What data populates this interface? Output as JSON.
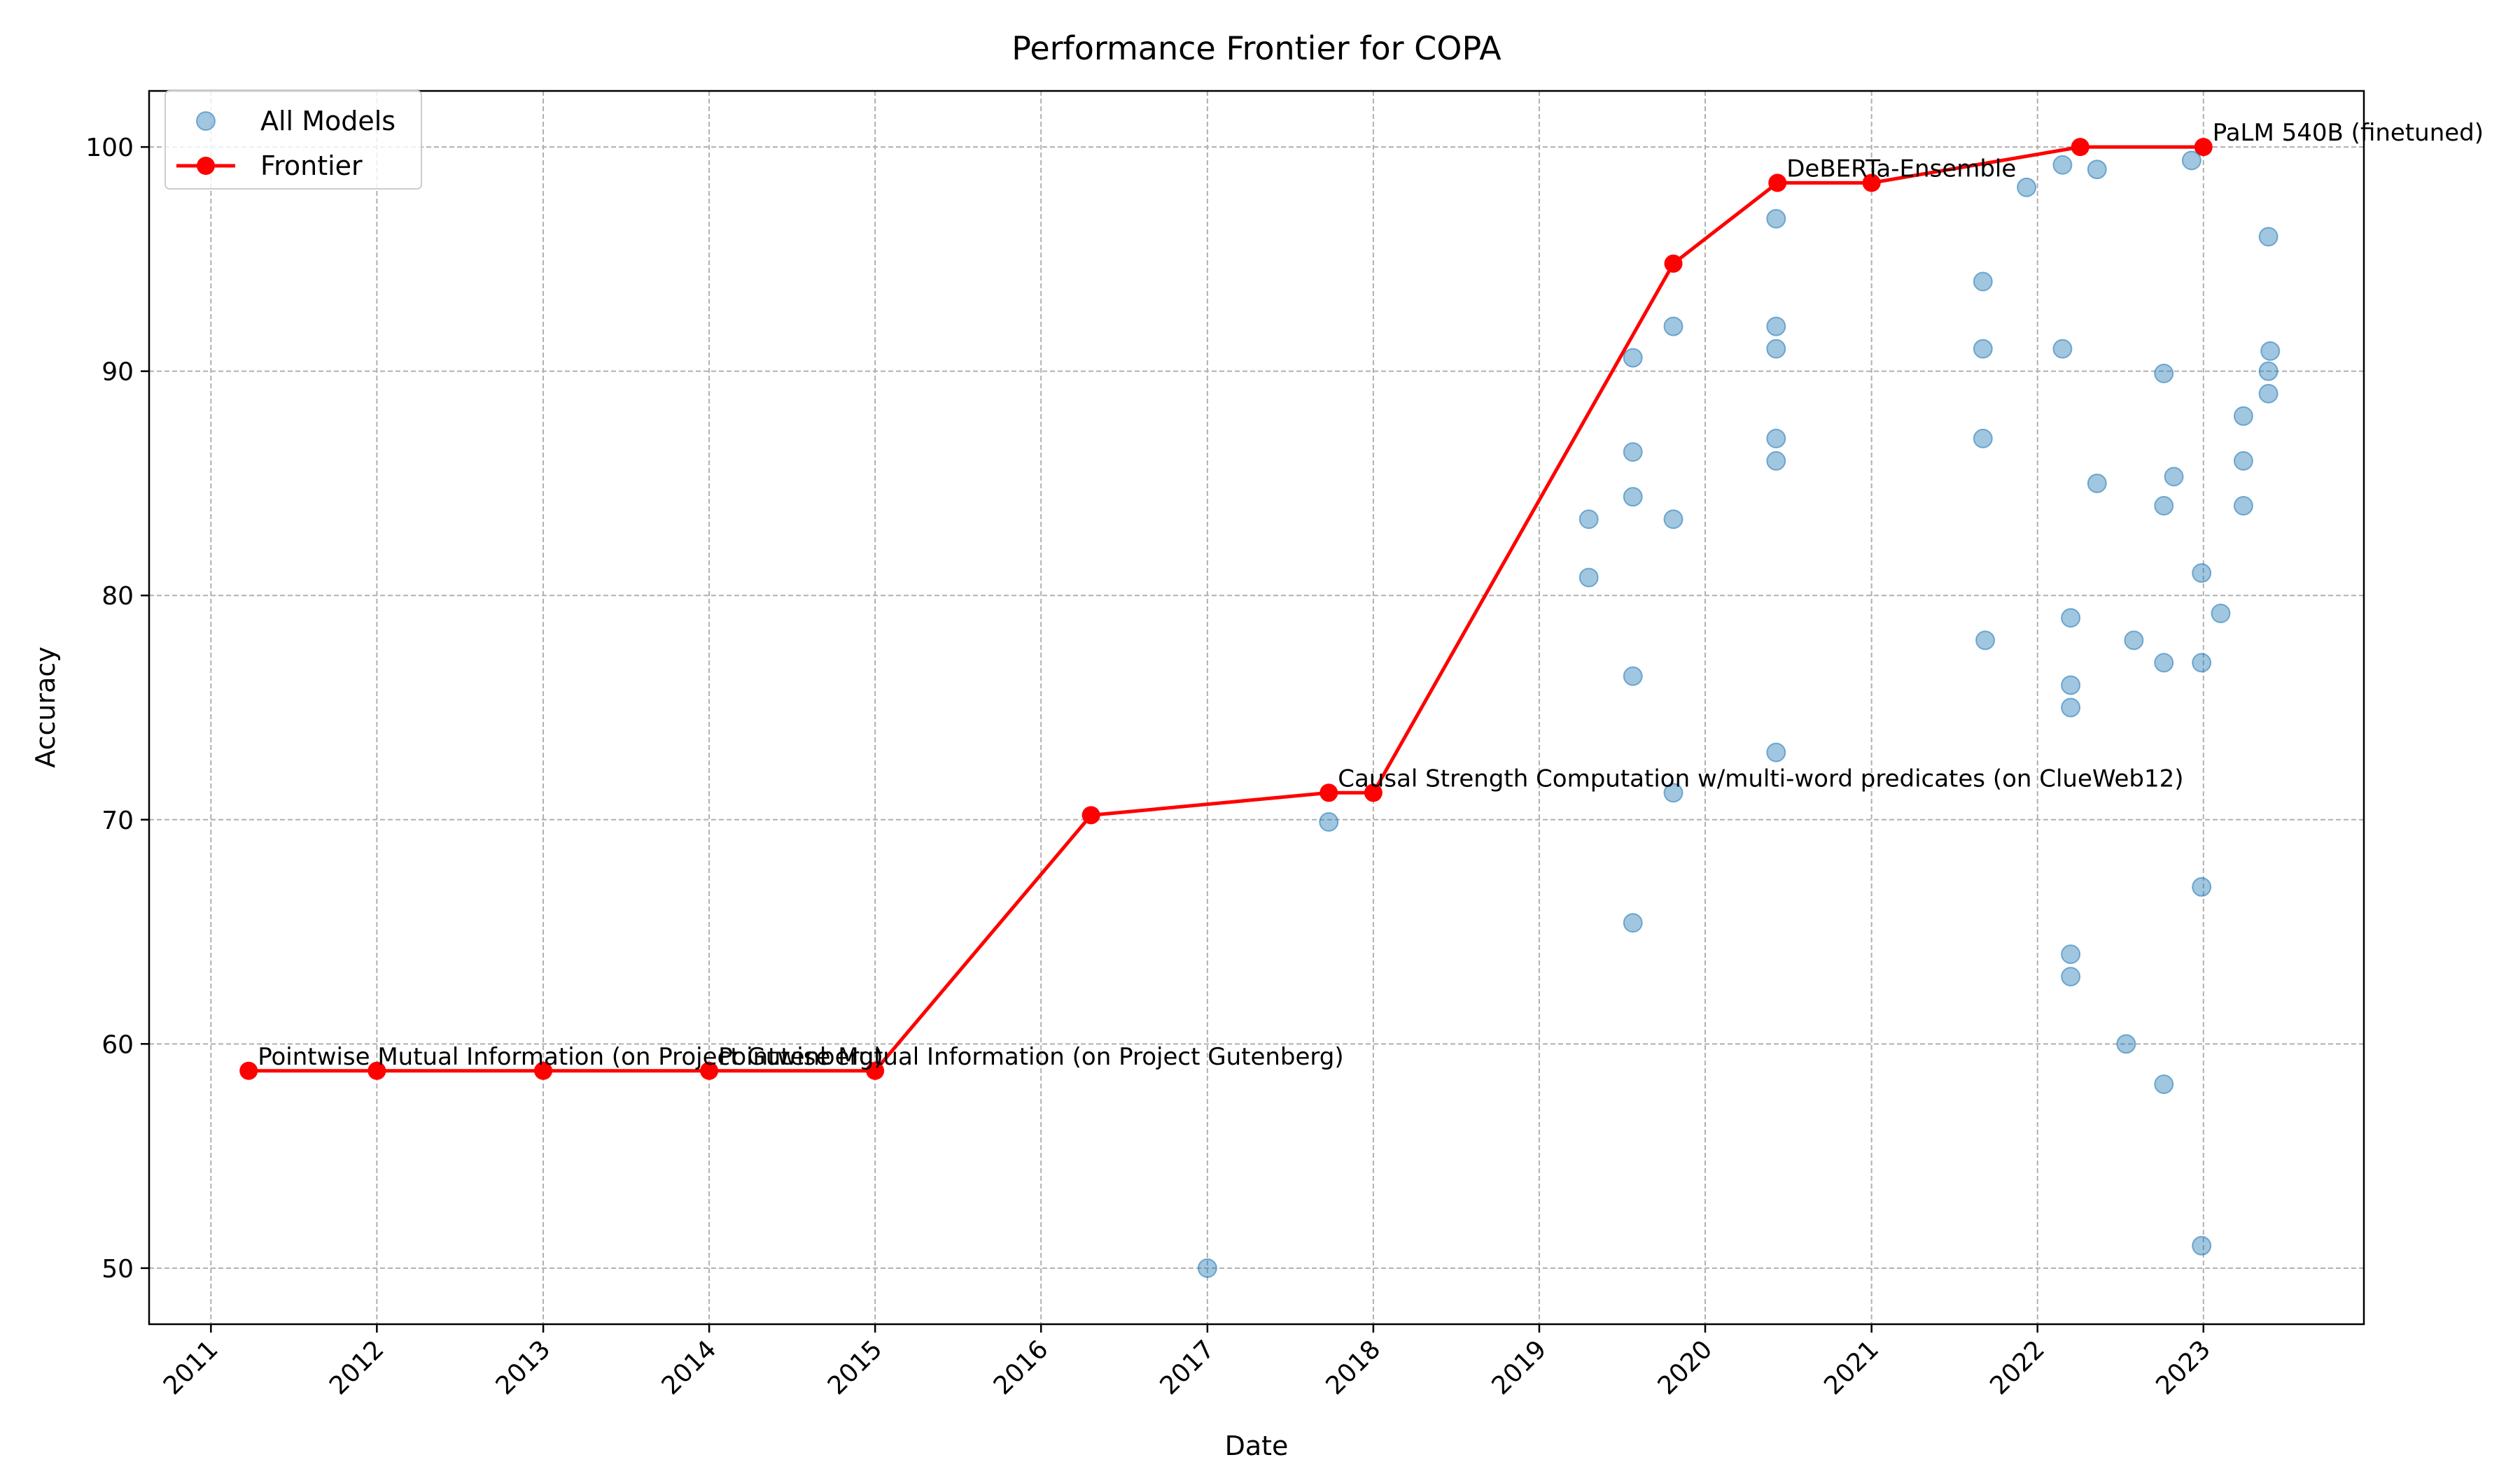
{
  "chart_data": {
    "type": "scatter",
    "title": "Performance Frontier for COPA",
    "xlabel": "Date",
    "ylabel": "Accuracy",
    "xlim": [
      "2010-08-18",
      "2023-12-20"
    ],
    "ylim": [
      47.5,
      102.5
    ],
    "x_ticks": [
      "2011",
      "2012",
      "2013",
      "2014",
      "2015",
      "2016",
      "2017",
      "2018",
      "2019",
      "2020",
      "2021",
      "2022",
      "2023"
    ],
    "y_ticks": [
      50,
      60,
      70,
      80,
      90,
      100
    ],
    "grid": true,
    "legend": {
      "placement": "top-left",
      "entries": [
        "All Models",
        "Frontier"
      ]
    },
    "colors": {
      "scatter": "#1f77b4",
      "frontier": "#ff0000"
    },
    "series": [
      {
        "name": "All Models",
        "points": [
          [
            "2017-01-01",
            50
          ],
          [
            "2017-09-25",
            69.9
          ],
          [
            "2019-04-20",
            83.4
          ],
          [
            "2019-04-20",
            80.8
          ],
          [
            "2019-07-26",
            90.6
          ],
          [
            "2019-07-26",
            86.4
          ],
          [
            "2019-07-26",
            84.4
          ],
          [
            "2019-07-26",
            76.4
          ],
          [
            "2019-07-26",
            65.4
          ],
          [
            "2019-10-23",
            92.0
          ],
          [
            "2019-10-23",
            83.4
          ],
          [
            "2019-10-23",
            71.2
          ],
          [
            "2020-06-05",
            96.8
          ],
          [
            "2020-06-05",
            92.0
          ],
          [
            "2020-06-05",
            91.0
          ],
          [
            "2020-06-05",
            87.0
          ],
          [
            "2020-06-05",
            86.0
          ],
          [
            "2020-06-05",
            73.0
          ],
          [
            "2021-09-03",
            94.0
          ],
          [
            "2021-09-03",
            91.0
          ],
          [
            "2021-09-03",
            87.0
          ],
          [
            "2021-09-08",
            78.0
          ],
          [
            "2021-12-08",
            98.2
          ],
          [
            "2022-02-25",
            99.2
          ],
          [
            "2022-02-25",
            91.0
          ],
          [
            "2022-03-15",
            79.0
          ],
          [
            "2022-03-15",
            76.0
          ],
          [
            "2022-03-15",
            75.0
          ],
          [
            "2022-03-15",
            64.0
          ],
          [
            "2022-03-15",
            63.0
          ],
          [
            "2022-05-12",
            99.0
          ],
          [
            "2022-05-12",
            85.0
          ],
          [
            "2022-07-15",
            60.0
          ],
          [
            "2022-08-01",
            78.0
          ],
          [
            "2022-10-06",
            89.9
          ],
          [
            "2022-10-06",
            84.0
          ],
          [
            "2022-10-06",
            77.0
          ],
          [
            "2022-10-06",
            58.2
          ],
          [
            "2022-10-28",
            85.3
          ],
          [
            "2022-12-06",
            99.4
          ],
          [
            "2022-12-28",
            81.0
          ],
          [
            "2022-12-28",
            77.0
          ],
          [
            "2022-12-28",
            67.0
          ],
          [
            "2022-12-28",
            51.0
          ],
          [
            "2023-02-08",
            79.2
          ],
          [
            "2023-03-30",
            88.0
          ],
          [
            "2023-03-30",
            86.0
          ],
          [
            "2023-03-30",
            84.0
          ],
          [
            "2023-05-24",
            96.0
          ],
          [
            "2023-05-24",
            90.0
          ],
          [
            "2023-05-24",
            89.0
          ],
          [
            "2023-05-28",
            90.9
          ]
        ]
      },
      {
        "name": "Frontier",
        "points": [
          [
            "2011-03-25",
            58.8
          ],
          [
            "2012-01-01",
            58.8
          ],
          [
            "2013-01-01",
            58.8
          ],
          [
            "2014-01-01",
            58.8
          ],
          [
            "2015-01-01",
            58.8
          ],
          [
            "2016-04-20",
            70.2
          ],
          [
            "2017-09-25",
            71.2
          ],
          [
            "2018-01-01",
            71.2
          ],
          [
            "2019-10-23",
            94.8
          ],
          [
            "2020-06-08",
            98.4
          ],
          [
            "2021-01-01",
            98.4
          ],
          [
            "2022-04-05",
            100.0
          ],
          [
            "2023-01-01",
            100.0
          ]
        ]
      }
    ],
    "annotations": [
      {
        "text": "Pointwise Mutual Information (on Project Gutenberg)",
        "x": "2011-03-25",
        "y": 58.8
      },
      {
        "text": "Pointwise Mutual Information (on Project Gutenberg)",
        "x": "2014-01-01",
        "y": 58.8
      },
      {
        "text": "Causal Strength Computation w/multi-word predicates (on ClueWeb12)",
        "x": "2017-09-25",
        "y": 71.2
      },
      {
        "text": "DeBERTa-Ensemble",
        "x": "2020-06-08",
        "y": 98.4
      },
      {
        "text": "PaLM 540B (finetuned)",
        "x": "2023-01-01",
        "y": 100.0
      }
    ]
  }
}
